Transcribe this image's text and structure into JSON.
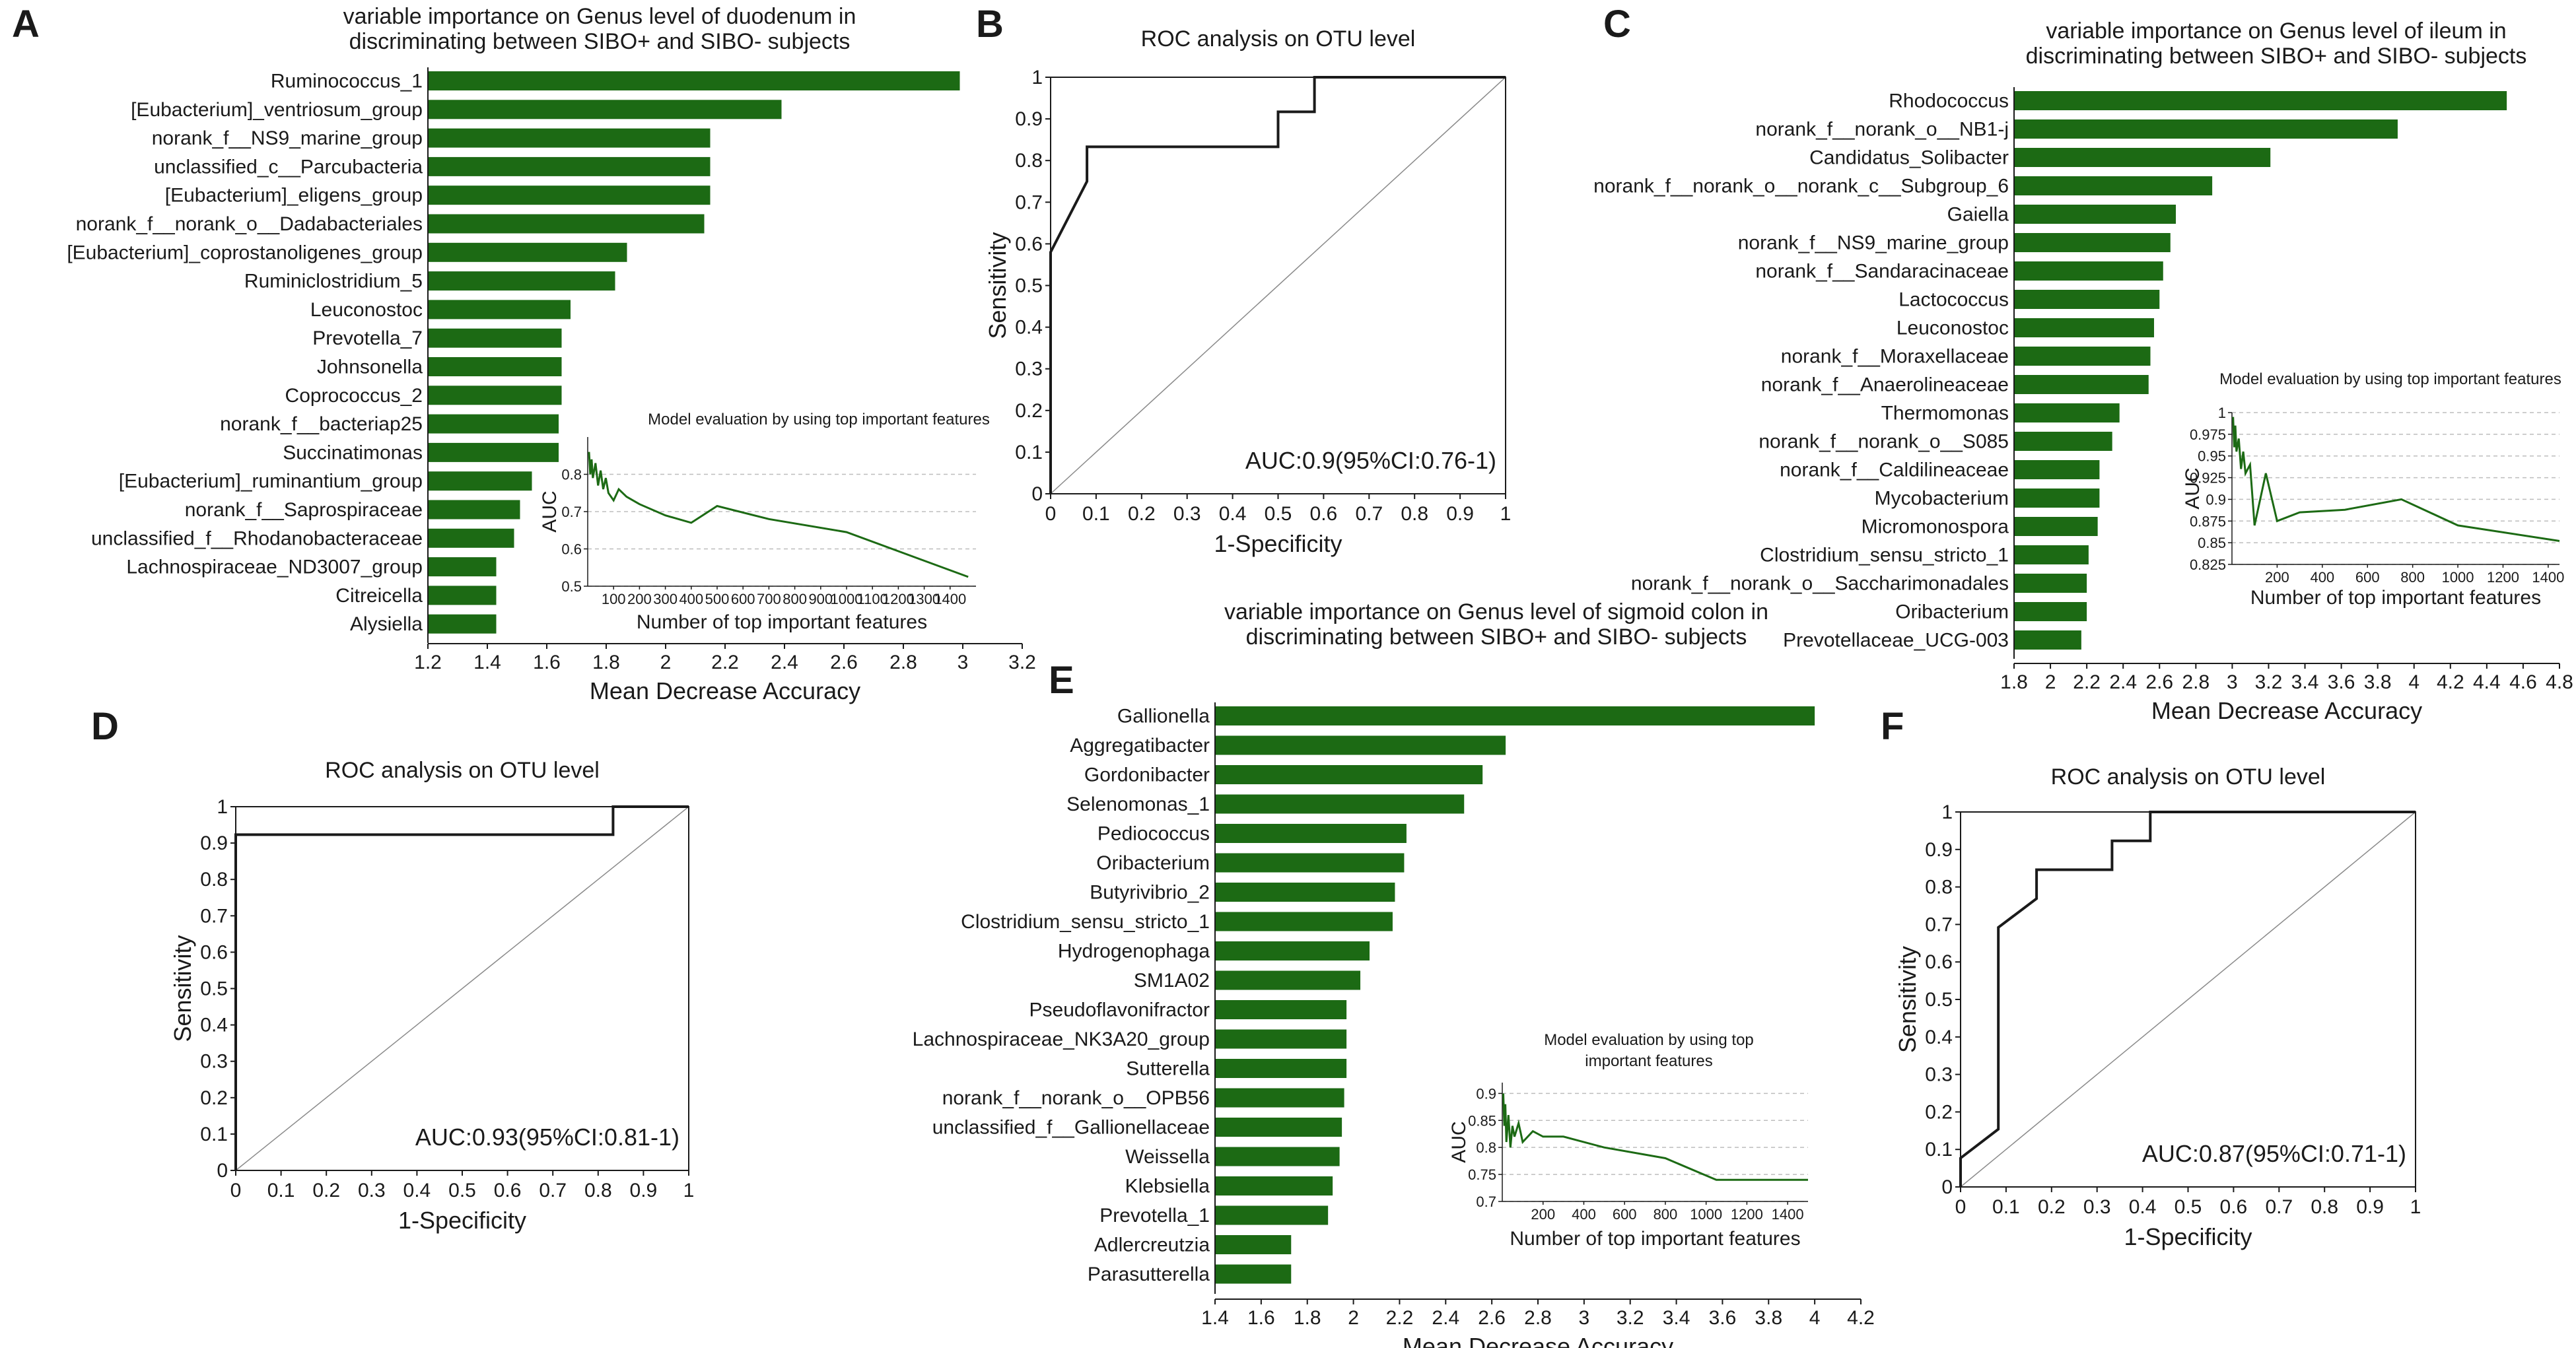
{
  "colors": {
    "bar": "#1c6a14",
    "inset_line": "#1c6a14",
    "axis": "#1a1a1a",
    "diag": "#8a8a8a",
    "grid": "#bdbdbd"
  },
  "panel_labels": {
    "A": "A",
    "B": "B",
    "C": "C",
    "D": "D",
    "E": "E",
    "F": "F"
  },
  "chart_data": [
    {
      "id": "A",
      "type": "bar",
      "orientation": "horizontal",
      "title": [
        "variable importance on Genus level of duodenum in",
        "discriminating between SIBO+ and SIBO- subjects"
      ],
      "xlabel": "Mean Decrease Accuracy",
      "xlim": [
        1.2,
        3.2
      ],
      "xticks": [
        1.2,
        1.4,
        1.6,
        1.8,
        2,
        2.2,
        2.4,
        2.6,
        2.8,
        3,
        3.2
      ],
      "categories": [
        "Ruminococcus_1",
        "[Eubacterium]_ventriosum_group",
        "norank_f__NS9_marine_group",
        "unclassified_c__Parcubacteria",
        "[Eubacterium]_eligens_group",
        "norank_f__norank_o__Dadabacteriales",
        "[Eubacterium]_coprostanoligenes_group",
        "Ruminiclostridium_5",
        "Leuconostoc",
        "Prevotella_7",
        "Johnsonella",
        "Coprococcus_2",
        "norank_f__bacteriap25",
        "Succinatimonas",
        "[Eubacterium]_ruminantium_group",
        "norank_f__Saprospiraceae",
        "unclassified_f__Rhodanobacteraceae",
        "Lachnospiraceae_ND3007_group",
        "Citreicella",
        "Alysiella"
      ],
      "values": [
        2.99,
        2.39,
        2.15,
        2.15,
        2.15,
        2.13,
        1.87,
        1.83,
        1.68,
        1.65,
        1.65,
        1.65,
        1.64,
        1.64,
        1.55,
        1.51,
        1.49,
        1.43,
        1.43,
        1.43
      ]
    },
    {
      "id": "A_inset",
      "type": "line",
      "title": "Model evaluation by using top important features",
      "xlabel": "Number of top important features",
      "ylabel": "AUC",
      "xlim": [
        0,
        1500
      ],
      "ylim": [
        0.5,
        0.9
      ],
      "xticks": [
        100,
        200,
        300,
        400,
        500,
        600,
        700,
        800,
        900,
        1000,
        1100,
        1200,
        1300,
        1400
      ],
      "yticks": [
        0.5,
        0.6,
        0.7,
        0.8
      ],
      "x": [
        5,
        10,
        15,
        20,
        30,
        40,
        50,
        60,
        70,
        80,
        100,
        120,
        150,
        200,
        300,
        400,
        500,
        700,
        1000,
        1470
      ],
      "y": [
        0.86,
        0.8,
        0.84,
        0.79,
        0.83,
        0.77,
        0.81,
        0.76,
        0.79,
        0.75,
        0.73,
        0.76,
        0.74,
        0.72,
        0.69,
        0.67,
        0.715,
        0.68,
        0.645,
        0.525
      ]
    },
    {
      "id": "B",
      "type": "line",
      "subtype": "roc",
      "title": "ROC analysis on OTU level",
      "xlabel": "1-Specificity",
      "ylabel": "Sensitivity",
      "xlim": [
        0,
        1
      ],
      "ylim": [
        0,
        1
      ],
      "xticks": [
        0,
        0.1,
        0.2,
        0.3,
        0.4,
        0.5,
        0.6,
        0.7,
        0.8,
        0.9,
        1
      ],
      "yticks": [
        0,
        0.1,
        0.2,
        0.3,
        0.4,
        0.5,
        0.6,
        0.7,
        0.8,
        0.9,
        1
      ],
      "x": [
        0,
        0,
        0.08,
        0.08,
        0.5,
        0.5,
        0.58,
        0.58,
        1
      ],
      "y": [
        0,
        0.58,
        0.75,
        0.833,
        0.833,
        0.917,
        0.917,
        1,
        1
      ],
      "annotation": "AUC:0.9(95%CI:0.76-1)"
    },
    {
      "id": "C",
      "type": "bar",
      "orientation": "horizontal",
      "title": [
        "variable importance on Genus level of ileum in",
        "discriminating between SIBO+ and SIBO- subjects"
      ],
      "xlabel": "Mean Decrease Accuracy",
      "xlim": [
        1.8,
        4.8
      ],
      "xticks": [
        1.8,
        2,
        2.2,
        2.4,
        2.6,
        2.8,
        3,
        3.2,
        3.4,
        3.6,
        3.8,
        4,
        4.2,
        4.4,
        4.6,
        4.8
      ],
      "categories": [
        "Rhodococcus",
        "norank_f__norank_o__NB1-j",
        "Candidatus_Solibacter",
        "norank_f__norank_o__norank_c__Subgroup_6",
        "Gaiella",
        "norank_f__NS9_marine_group",
        "norank_f__Sandaracinaceae",
        "Lactococcus",
        "Leuconostoc",
        "norank_f__Moraxellaceae",
        "norank_f__Anaerolineaceae",
        "Thermomonas",
        "norank_f__norank_o__S085",
        "norank_f__Caldilineaceae",
        "Mycobacterium",
        "Micromonospora",
        "Clostridium_sensu_stricto_1",
        "norank_f__norank_o__Saccharimonadales",
        "Oribacterium",
        "Prevotellaceae_UCG-003"
      ],
      "values": [
        4.51,
        3.91,
        3.21,
        2.89,
        2.69,
        2.66,
        2.62,
        2.6,
        2.57,
        2.55,
        2.54,
        2.38,
        2.34,
        2.27,
        2.27,
        2.26,
        2.21,
        2.2,
        2.2,
        2.17
      ]
    },
    {
      "id": "C_inset",
      "type": "line",
      "title": "Model evaluation by using top important features",
      "xlabel": "Number of top important features",
      "ylabel": "AUC",
      "xlim": [
        0,
        1450
      ],
      "ylim": [
        0.825,
        1
      ],
      "xticks": [
        200,
        400,
        600,
        800,
        1000,
        1200,
        1400
      ],
      "yticks": [
        0.825,
        0.85,
        0.875,
        0.9,
        0.925,
        0.95,
        0.975,
        1
      ],
      "x": [
        5,
        10,
        15,
        20,
        30,
        40,
        50,
        60,
        80,
        100,
        150,
        200,
        300,
        500,
        750,
        1000,
        1450
      ],
      "y": [
        0.995,
        0.96,
        0.985,
        0.955,
        0.97,
        0.935,
        0.955,
        0.93,
        0.94,
        0.87,
        0.93,
        0.875,
        0.885,
        0.888,
        0.9,
        0.87,
        0.852
      ]
    },
    {
      "id": "D",
      "type": "line",
      "subtype": "roc",
      "title": "ROC analysis on OTU level",
      "xlabel": "1-Specificity",
      "ylabel": "Sensitivity",
      "xlim": [
        0,
        1
      ],
      "ylim": [
        0,
        1
      ],
      "xticks": [
        0,
        0.1,
        0.2,
        0.3,
        0.4,
        0.5,
        0.6,
        0.7,
        0.8,
        0.9,
        1
      ],
      "yticks": [
        0,
        0.1,
        0.2,
        0.3,
        0.4,
        0.5,
        0.6,
        0.7,
        0.8,
        0.9,
        1
      ],
      "x": [
        0,
        0,
        0.833,
        0.833,
        1
      ],
      "y": [
        0,
        0.923,
        0.923,
        1,
        1
      ],
      "annotation": "AUC:0.93(95%CI:0.81-1)"
    },
    {
      "id": "E",
      "type": "bar",
      "orientation": "horizontal",
      "title": [
        "variable importance on Genus level of sigmoid colon in",
        "discriminating between SIBO+ and SIBO- subjects"
      ],
      "xlabel": "Mean Decrease Accuracy",
      "xlim": [
        1.4,
        4.2
      ],
      "xticks": [
        1.4,
        1.6,
        1.8,
        2,
        2.2,
        2.4,
        2.6,
        2.8,
        3,
        3.2,
        3.4,
        3.6,
        3.8,
        4,
        4.2
      ],
      "categories": [
        "Gallionella",
        "Aggregatibacter",
        "Gordonibacter",
        "Selenomonas_1",
        "Pediococcus",
        "Oribacterium",
        "Butyrivibrio_2",
        "Clostridium_sensu_stricto_1",
        "Hydrogenophaga",
        "SM1A02",
        "Pseudoflavonifractor",
        "Lachnospiraceae_NK3A20_group",
        "Sutterella",
        "norank_f__norank_o__OPB56",
        "unclassified_f__Gallionellaceae",
        "Weissella",
        "Klebsiella",
        "Prevotella_1",
        "Adlercreutzia",
        "Parasutterella"
      ],
      "values": [
        4.0,
        2.66,
        2.56,
        2.48,
        2.23,
        2.22,
        2.18,
        2.17,
        2.07,
        2.03,
        1.97,
        1.97,
        1.97,
        1.96,
        1.95,
        1.94,
        1.91,
        1.89,
        1.73,
        1.73
      ]
    },
    {
      "id": "E_inset",
      "type": "line",
      "title": [
        "Model evaluation by using top",
        "important features"
      ],
      "xlabel": "Number of top important features",
      "ylabel": "AUC",
      "xlim": [
        0,
        1500
      ],
      "ylim": [
        0.7,
        0.92
      ],
      "xticks": [
        200,
        400,
        600,
        800,
        1000,
        1200,
        1400
      ],
      "yticks": [
        0.7,
        0.75,
        0.8,
        0.85,
        0.9
      ],
      "x": [
        5,
        10,
        15,
        20,
        30,
        40,
        50,
        60,
        80,
        100,
        150,
        200,
        300,
        500,
        800,
        1050,
        1500
      ],
      "y": [
        0.9,
        0.84,
        0.88,
        0.81,
        0.86,
        0.8,
        0.84,
        0.82,
        0.845,
        0.81,
        0.83,
        0.82,
        0.82,
        0.8,
        0.78,
        0.74,
        0.74
      ]
    },
    {
      "id": "F",
      "type": "line",
      "subtype": "roc",
      "title": "ROC analysis on OTU level",
      "xlabel": "1-Specificity",
      "ylabel": "Sensitivity",
      "xlim": [
        0,
        1
      ],
      "ylim": [
        0,
        1
      ],
      "xticks": [
        0,
        0.1,
        0.2,
        0.3,
        0.4,
        0.5,
        0.6,
        0.7,
        0.8,
        0.9,
        1
      ],
      "yticks": [
        0,
        0.1,
        0.2,
        0.3,
        0.4,
        0.5,
        0.6,
        0.7,
        0.8,
        0.9,
        1
      ],
      "x": [
        0,
        0,
        0.083,
        0.083,
        0.083,
        0.167,
        0.167,
        0.333,
        0.333,
        0.417,
        0.417,
        1
      ],
      "y": [
        0,
        0.077,
        0.154,
        0.385,
        0.692,
        0.769,
        0.846,
        0.846,
        0.923,
        0.923,
        1,
        1
      ],
      "annotation": "AUC:0.87(95%CI:0.71-1)"
    }
  ]
}
